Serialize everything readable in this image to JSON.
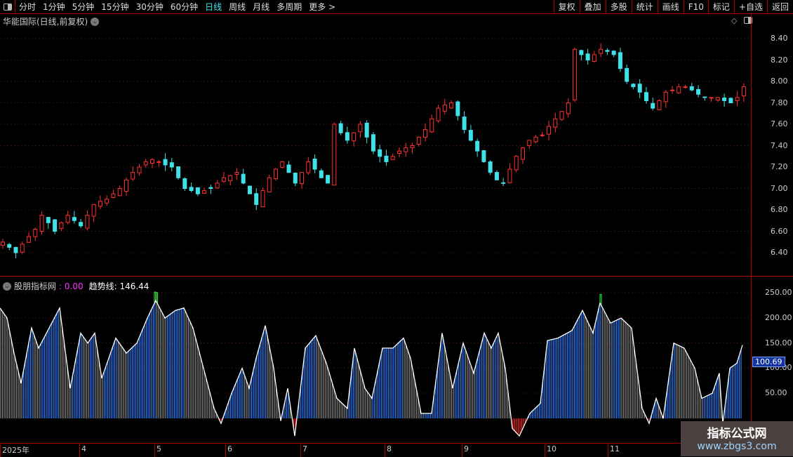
{
  "toolbar": {
    "periods": [
      "分时",
      "1分钟",
      "5分钟",
      "15分钟",
      "30分钟",
      "60分钟",
      "日线",
      "周线",
      "月线",
      "多周期",
      "更多 >"
    ],
    "active_period": "日线",
    "tools": [
      "复权",
      "叠加",
      "多股",
      "统计",
      "画线",
      "F10",
      "标记",
      "+自选",
      "返回"
    ]
  },
  "chart": {
    "title": "华能国际(日线,前复权)",
    "price_axis": [
      "8.40",
      "8.20",
      "8.00",
      "7.80",
      "7.60",
      "7.40",
      "7.20",
      "7.00",
      "6.80",
      "6.60",
      "6.40"
    ],
    "up_color": "#ff3030",
    "down_color": "#40e0e8",
    "closes": [
      6.5,
      6.45,
      6.4,
      6.48,
      6.55,
      6.62,
      6.75,
      6.68,
      6.6,
      6.68,
      6.75,
      6.7,
      6.65,
      6.75,
      6.85,
      6.88,
      6.9,
      6.95,
      7.0,
      7.08,
      7.15,
      7.2,
      7.25,
      7.27,
      7.25,
      7.22,
      7.2,
      7.1,
      7.0,
      6.98,
      6.95,
      6.98,
      7.0,
      7.05,
      7.1,
      7.12,
      7.15,
      7.05,
      6.95,
      6.85,
      6.98,
      7.1,
      7.18,
      7.25,
      7.15,
      7.05,
      7.15,
      7.25,
      7.18,
      7.1,
      7.05,
      7.6,
      7.52,
      7.45,
      7.52,
      7.6,
      7.48,
      7.35,
      7.3,
      7.25,
      7.3,
      7.35,
      7.38,
      7.4,
      7.48,
      7.55,
      7.65,
      7.75,
      7.78,
      7.8,
      7.68,
      7.55,
      7.45,
      7.35,
      7.25,
      7.15,
      7.08,
      7.05,
      7.18,
      7.3,
      7.38,
      7.45,
      7.48,
      7.5,
      7.58,
      7.65,
      7.72,
      7.8,
      8.3,
      8.25,
      8.2,
      8.25,
      8.3,
      8.28,
      8.25,
      8.12,
      8.0,
      7.95,
      7.9,
      7.82,
      7.75,
      7.82,
      7.9,
      7.92,
      7.95,
      7.95,
      7.92,
      7.88,
      7.85,
      7.85,
      7.85,
      7.82,
      7.8,
      7.85,
      7.95
    ]
  },
  "indicator": {
    "name": "股朋指标网",
    "value_label": ": 0.00",
    "trend_label": "趋势线: 146.44",
    "axis": [
      "250.00",
      "200.00",
      "150.00",
      "100.00",
      "50.00"
    ],
    "current_value": "100.69",
    "trend": [
      [
        0,
        220
      ],
      [
        10,
        200
      ],
      [
        20,
        130
      ],
      [
        30,
        70
      ],
      [
        45,
        180
      ],
      [
        55,
        140
      ],
      [
        70,
        180
      ],
      [
        85,
        220
      ],
      [
        100,
        60
      ],
      [
        115,
        170
      ],
      [
        125,
        150
      ],
      [
        135,
        170
      ],
      [
        145,
        80
      ],
      [
        165,
        160
      ],
      [
        180,
        130
      ],
      [
        195,
        150
      ],
      [
        210,
        200
      ],
      [
        222,
        235
      ],
      [
        235,
        200
      ],
      [
        250,
        215
      ],
      [
        262,
        220
      ],
      [
        275,
        180
      ],
      [
        290,
        100
      ],
      [
        305,
        20
      ],
      [
        315,
        -10
      ],
      [
        330,
        50
      ],
      [
        345,
        100
      ],
      [
        355,
        60
      ],
      [
        365,
        120
      ],
      [
        378,
        185
      ],
      [
        390,
        100
      ],
      [
        400,
        -5
      ],
      [
        410,
        60
      ],
      [
        420,
        -35
      ],
      [
        435,
        140
      ],
      [
        450,
        165
      ],
      [
        465,
        110
      ],
      [
        480,
        40
      ],
      [
        495,
        20
      ],
      [
        505,
        140
      ],
      [
        520,
        60
      ],
      [
        530,
        40
      ],
      [
        545,
        140
      ],
      [
        560,
        140
      ],
      [
        575,
        160
      ],
      [
        585,
        120
      ],
      [
        600,
        10
      ],
      [
        615,
        10
      ],
      [
        630,
        170
      ],
      [
        645,
        60
      ],
      [
        660,
        150
      ],
      [
        675,
        90
      ],
      [
        690,
        170
      ],
      [
        700,
        140
      ],
      [
        710,
        170
      ],
      [
        720,
        100
      ],
      [
        730,
        -20
      ],
      [
        740,
        -35
      ],
      [
        755,
        10
      ],
      [
        770,
        30
      ],
      [
        780,
        155
      ],
      [
        795,
        160
      ],
      [
        815,
        175
      ],
      [
        830,
        215
      ],
      [
        845,
        170
      ],
      [
        855,
        230
      ],
      [
        870,
        190
      ],
      [
        885,
        200
      ],
      [
        900,
        180
      ],
      [
        915,
        20
      ],
      [
        925,
        -10
      ],
      [
        935,
        40
      ],
      [
        945,
        0
      ],
      [
        960,
        150
      ],
      [
        975,
        140
      ],
      [
        990,
        100
      ],
      [
        1000,
        40
      ],
      [
        1015,
        50
      ],
      [
        1025,
        90
      ],
      [
        1030,
        -10
      ],
      [
        1040,
        100
      ],
      [
        1050,
        110
      ],
      [
        1058,
        146
      ]
    ]
  },
  "dates": [
    {
      "label": "2025年"
    },
    {
      "label": "4"
    },
    {
      "label": "5"
    },
    {
      "label": "6"
    },
    {
      "label": "7"
    },
    {
      "label": "8"
    },
    {
      "label": "9"
    },
    {
      "label": "10"
    },
    {
      "label": "11"
    }
  ],
  "watermark": {
    "title": "指标公式网",
    "url": "www.zbgs3.com"
  }
}
